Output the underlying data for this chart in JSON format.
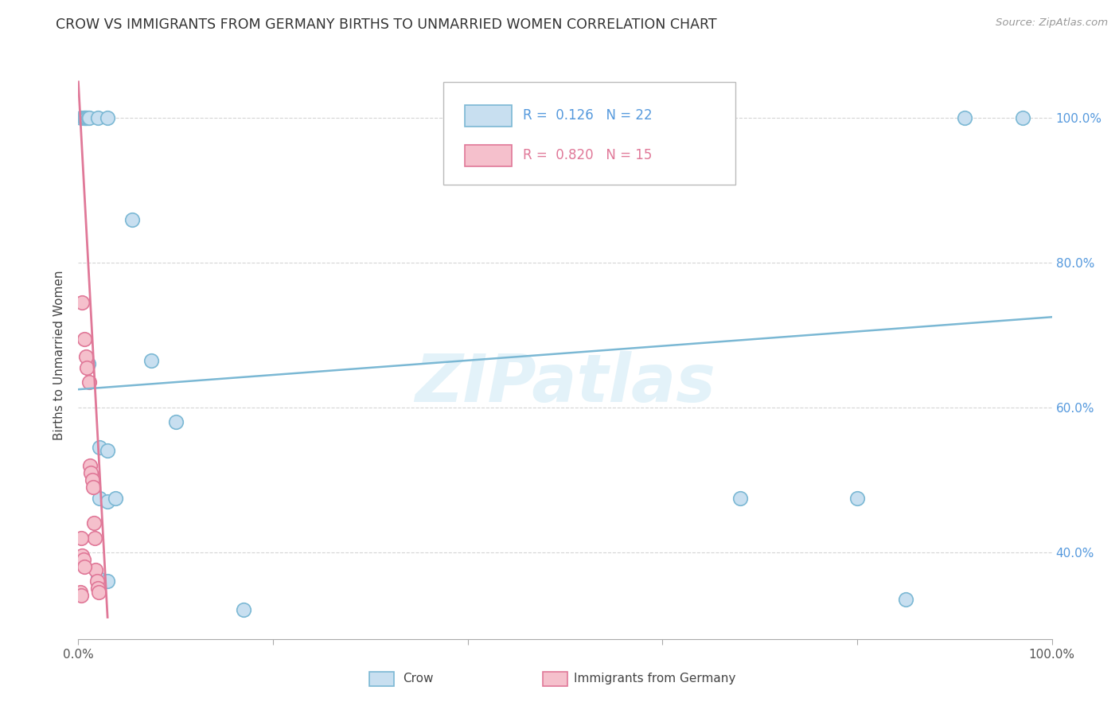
{
  "title": "CROW VS IMMIGRANTS FROM GERMANY BIRTHS TO UNMARRIED WOMEN CORRELATION CHART",
  "source": "Source: ZipAtlas.com",
  "ylabel": "Births to Unmarried Women",
  "watermark": "ZIPatlas",
  "blue_color": "#7bb8d4",
  "blue_fill": "#c8dff0",
  "pink_color": "#e07898",
  "pink_fill": "#f5c0cc",
  "crow_scatter": [
    [
      0.003,
      1.0
    ],
    [
      0.005,
      1.0
    ],
    [
      0.006,
      1.0
    ],
    [
      0.007,
      1.0
    ],
    [
      0.008,
      1.0
    ],
    [
      0.009,
      1.0
    ],
    [
      0.01,
      1.0
    ],
    [
      0.011,
      1.0
    ],
    [
      0.02,
      1.0
    ],
    [
      0.03,
      1.0
    ],
    [
      0.055,
      0.86
    ],
    [
      0.075,
      0.665
    ],
    [
      0.1,
      0.58
    ],
    [
      0.01,
      0.66
    ],
    [
      0.022,
      0.545
    ],
    [
      0.03,
      0.54
    ],
    [
      0.022,
      0.475
    ],
    [
      0.03,
      0.47
    ],
    [
      0.038,
      0.475
    ],
    [
      0.02,
      0.365
    ],
    [
      0.03,
      0.36
    ],
    [
      0.68,
      0.475
    ],
    [
      0.8,
      0.475
    ],
    [
      0.85,
      0.335
    ],
    [
      0.91,
      1.0
    ],
    [
      0.97,
      1.0
    ],
    [
      0.17,
      0.32
    ]
  ],
  "germany_scatter": [
    [
      0.004,
      0.745
    ],
    [
      0.006,
      0.695
    ],
    [
      0.008,
      0.67
    ],
    [
      0.009,
      0.655
    ],
    [
      0.011,
      0.635
    ],
    [
      0.012,
      0.52
    ],
    [
      0.013,
      0.51
    ],
    [
      0.014,
      0.5
    ],
    [
      0.015,
      0.49
    ],
    [
      0.016,
      0.44
    ],
    [
      0.017,
      0.42
    ],
    [
      0.018,
      0.375
    ],
    [
      0.019,
      0.36
    ],
    [
      0.02,
      0.35
    ],
    [
      0.021,
      0.345
    ],
    [
      0.003,
      0.42
    ],
    [
      0.004,
      0.395
    ],
    [
      0.005,
      0.39
    ],
    [
      0.006,
      0.38
    ],
    [
      0.002,
      0.345
    ],
    [
      0.003,
      0.34
    ]
  ],
  "blue_line_x0": 0.0,
  "blue_line_x1": 1.0,
  "blue_line_y0": 0.625,
  "blue_line_y1": 0.725,
  "pink_line_x0": 0.0,
  "pink_line_x1": 0.03,
  "pink_line_y0": 1.05,
  "pink_line_y1": 0.31,
  "xmin": 0.0,
  "xmax": 1.0,
  "ymin": 0.28,
  "ymax": 1.065,
  "y_ticks": [
    0.4,
    0.6,
    0.8,
    1.0
  ],
  "y_tick_labels": [
    "40.0%",
    "60.0%",
    "80.0%",
    "100.0%"
  ],
  "x_ticks": [
    0.0,
    0.2,
    0.4,
    0.6,
    0.8,
    1.0
  ],
  "grid_color": "#d5d5d5",
  "bg_color": "#ffffff",
  "scatter_size": 160
}
